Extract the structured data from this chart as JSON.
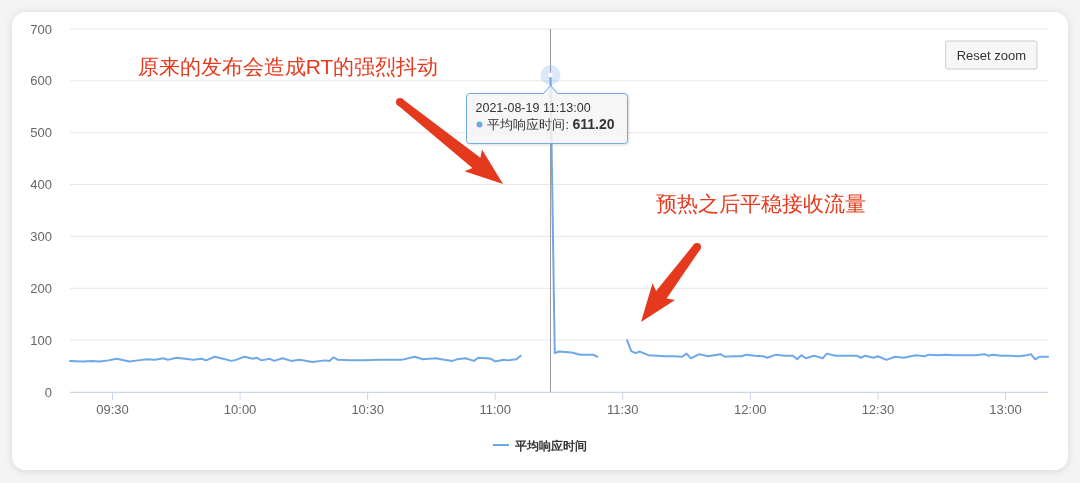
{
  "chart_data": {
    "type": "line",
    "series": [
      {
        "name": "平均响应时间",
        "color": "#6fa8e8",
        "x": [
          "2021-08-19T09:20",
          "2021-08-19T09:23",
          "2021-08-19T09:25",
          "2021-08-19T09:27",
          "2021-08-19T09:29",
          "2021-08-19T09:31",
          "2021-08-19T09:34",
          "2021-08-19T09:36",
          "2021-08-19T09:38",
          "2021-08-19T09:40",
          "2021-08-19T09:42",
          "2021-08-19T09:43",
          "2021-08-19T09:45",
          "2021-08-19T09:47",
          "2021-08-19T09:49",
          "2021-08-19T09:51",
          "2021-08-19T09:52",
          "2021-08-19T09:54",
          "2021-08-19T09:56",
          "2021-08-19T09:58",
          "2021-08-19T09:59",
          "2021-08-19T10:01",
          "2021-08-19T10:03",
          "2021-08-19T10:04",
          "2021-08-19T10:05",
          "2021-08-19T10:07",
          "2021-08-19T10:08",
          "2021-08-19T10:10",
          "2021-08-19T10:12",
          "2021-08-19T10:14",
          "2021-08-19T10:17",
          "2021-08-19T10:20",
          "2021-08-19T10:21",
          "2021-08-19T10:22",
          "2021-08-19T10:23",
          "2021-08-19T10:26",
          "2021-08-19T10:29",
          "2021-08-19T10:33",
          "2021-08-19T10:36",
          "2021-08-19T10:38",
          "2021-08-19T10:41",
          "2021-08-19T10:43",
          "2021-08-19T10:46",
          "2021-08-19T10:48",
          "2021-08-19T10:50",
          "2021-08-19T10:51",
          "2021-08-19T10:53",
          "2021-08-19T10:55",
          "2021-08-19T10:56",
          "2021-08-19T10:58",
          "2021-08-19T10:59",
          "2021-08-19T11:00",
          "2021-08-19T11:02",
          "2021-08-19T11:03",
          "2021-08-19T11:05",
          "2021-08-19T11:06"
        ],
        "values": [
          60,
          59,
          60,
          59,
          61,
          64,
          59,
          61,
          63,
          62,
          65,
          62,
          66,
          64,
          62,
          64,
          61,
          68,
          64,
          60,
          62,
          68,
          64,
          66,
          61,
          64,
          60,
          65,
          60,
          62,
          58,
          61,
          60,
          67,
          62,
          61,
          61,
          62,
          62,
          62,
          68,
          63,
          65,
          62,
          60,
          63,
          65,
          60,
          66,
          65,
          64,
          59,
          62,
          61,
          63,
          70
        ]
      },
      {
        "color": "#6fa8e8",
        "x": [
          "2021-08-19T11:13",
          "2021-08-19T11:14",
          "2021-08-19T11:15",
          "2021-08-19T11:18",
          "2021-08-19T11:20",
          "2021-08-19T11:23",
          "2021-08-19T11:24"
        ],
        "values": [
          611.2,
          75,
          78,
          76,
          72,
          72,
          68
        ]
      },
      {
        "color": "#6fa8e8",
        "x": [
          "2021-08-19T11:31",
          "2021-08-19T11:32",
          "2021-08-19T11:33",
          "2021-08-19T11:34",
          "2021-08-19T11:36",
          "2021-08-19T11:40",
          "2021-08-19T11:42",
          "2021-08-19T11:44",
          "2021-08-19T11:45",
          "2021-08-19T11:46",
          "2021-08-19T11:48",
          "2021-08-19T11:50",
          "2021-08-19T11:53",
          "2021-08-19T11:54",
          "2021-08-19T11:56",
          "2021-08-19T11:58",
          "2021-08-19T11:59",
          "2021-08-19T12:01",
          "2021-08-19T12:03",
          "2021-08-19T12:04",
          "2021-08-19T12:06",
          "2021-08-19T12:08",
          "2021-08-19T12:10",
          "2021-08-19T12:11",
          "2021-08-19T12:12",
          "2021-08-19T12:13",
          "2021-08-19T12:15",
          "2021-08-19T12:17",
          "2021-08-19T12:18",
          "2021-08-19T12:20",
          "2021-08-19T12:23",
          "2021-08-19T12:25",
          "2021-08-19T12:26",
          "2021-08-19T12:27",
          "2021-08-19T12:29",
          "2021-08-19T12:30",
          "2021-08-19T12:32",
          "2021-08-19T12:34",
          "2021-08-19T12:36",
          "2021-08-19T12:39",
          "2021-08-19T12:41",
          "2021-08-19T12:42",
          "2021-08-19T12:44",
          "2021-08-19T12:46",
          "2021-08-19T12:48",
          "2021-08-19T12:50",
          "2021-08-19T12:53",
          "2021-08-19T12:55",
          "2021-08-19T12:56",
          "2021-08-19T12:57",
          "2021-08-19T12:59",
          "2021-08-19T13:01",
          "2021-08-19T13:03",
          "2021-08-19T13:05",
          "2021-08-19T13:06",
          "2021-08-19T13:07",
          "2021-08-19T13:08",
          "2021-08-19T13:10"
        ],
        "values": [
          100,
          79,
          75,
          78,
          71,
          69,
          69,
          68,
          74,
          65,
          73,
          69,
          73,
          68,
          69,
          69,
          72,
          70,
          69,
          66,
          72,
          70,
          70,
          63,
          71,
          65,
          70,
          65,
          74,
          70,
          70,
          70,
          66,
          70,
          66,
          69,
          62,
          68,
          66,
          71,
          69,
          72,
          71,
          72,
          71,
          71,
          71,
          73,
          70,
          72,
          70,
          70,
          69,
          71,
          73,
          63,
          68,
          68
        ]
      }
    ],
    "xlim": [
      "2021-08-19T09:20",
      "2021-08-19T13:10"
    ],
    "xticks": [
      {
        "value": "2021-08-19T09:30",
        "label": "09:30"
      },
      {
        "value": "2021-08-19T10:00",
        "label": "10:00"
      },
      {
        "value": "2021-08-19T10:30",
        "label": "10:30"
      },
      {
        "value": "2021-08-19T11:00",
        "label": "11:00"
      },
      {
        "value": "2021-08-19T11:30",
        "label": "11:30"
      },
      {
        "value": "2021-08-19T12:00",
        "label": "12:00"
      },
      {
        "value": "2021-08-19T12:30",
        "label": "12:30"
      },
      {
        "value": "2021-08-19T13:00",
        "label": "13:00"
      }
    ],
    "ylim": [
      0,
      700
    ],
    "yticks": [
      0,
      100,
      200,
      300,
      400,
      500,
      600,
      700
    ],
    "grid": "y",
    "legend": "bottom",
    "ref_lines": [
      {
        "axis": "x",
        "value": "2021-08-19T11:13",
        "color": "#999999"
      }
    ],
    "annotations": [
      "原来的发布会造成RT的强烈抖动",
      "预热之后平稳接收流量",
      {
        "text": "2021-08-19 11:13:00\n平均响应时间: 611.20",
        "x": "2021-08-19T11:13",
        "y": 611.2
      },
      "Reset zoom"
    ]
  }
}
